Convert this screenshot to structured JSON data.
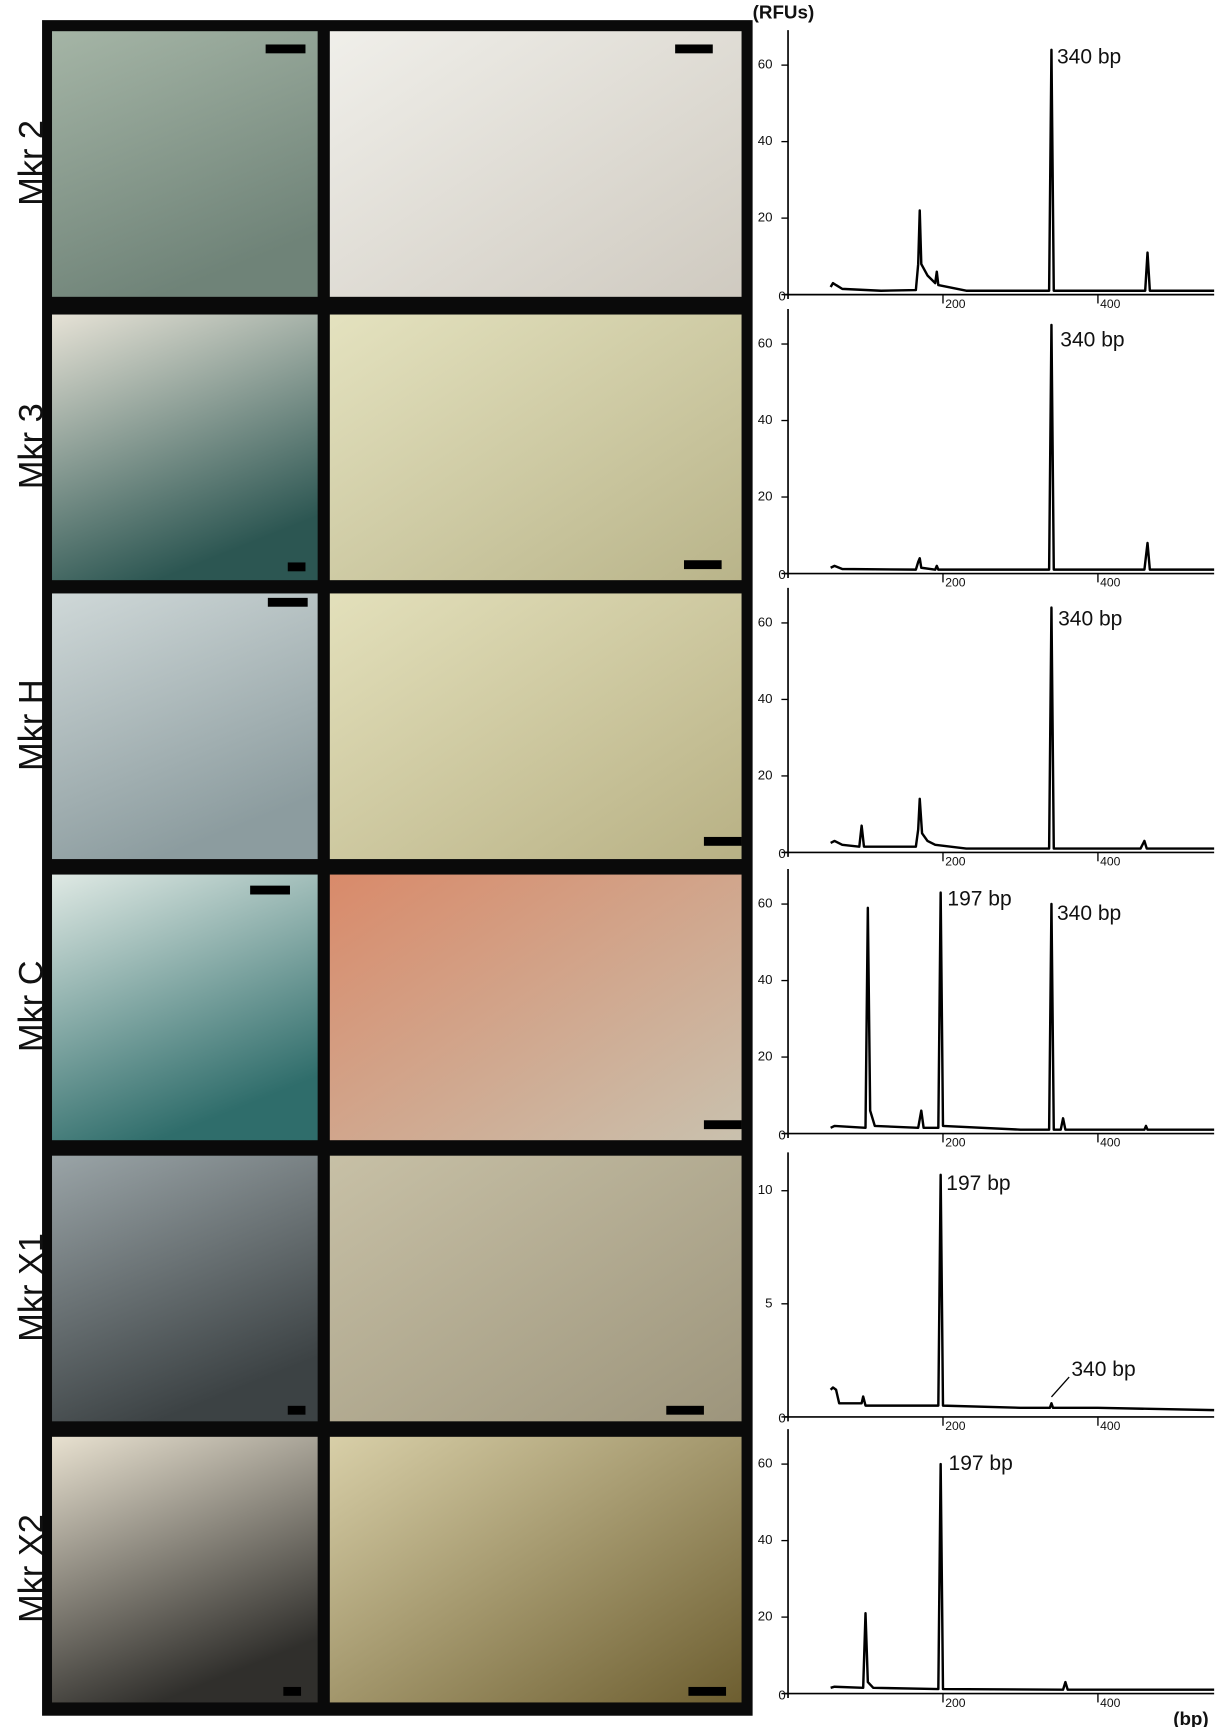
{
  "y_axis_label": "(RFUs)",
  "x_axis_label": "(bp)",
  "chart_data": [
    {
      "type": "line",
      "label": "Mkr 2",
      "color": "#000000",
      "xlim": [
        0,
        550
      ],
      "xticks": [
        200,
        400
      ],
      "ylim": [
        0,
        68
      ],
      "yticks": [
        0,
        20,
        40,
        60
      ],
      "x": [
        55,
        58,
        62,
        70,
        120,
        165,
        168,
        170,
        172,
        180,
        190,
        192,
        194,
        230,
        330,
        337,
        340,
        343,
        455,
        461,
        464,
        467,
        550
      ],
      "values": [
        2,
        3,
        2.5,
        1.5,
        1,
        1.2,
        8,
        22,
        8,
        5,
        3,
        6,
        2.5,
        1,
        1,
        1,
        64,
        1,
        1,
        1,
        11,
        1,
        1
      ],
      "annotations": [
        "340 bp"
      ]
    },
    {
      "type": "line",
      "label": "Mkr 3",
      "color": "#000000",
      "xlim": [
        0,
        550
      ],
      "xticks": [
        200,
        400
      ],
      "ylim": [
        0,
        68
      ],
      "yticks": [
        0,
        20,
        40,
        60
      ],
      "x": [
        55,
        60,
        70,
        165,
        168,
        170,
        172,
        190,
        192,
        194,
        300,
        337,
        340,
        343,
        460,
        464,
        467,
        550
      ],
      "values": [
        1.5,
        2,
        1.2,
        1,
        3,
        4,
        1.5,
        1,
        2,
        1,
        1,
        1,
        65,
        1,
        1,
        8,
        1,
        1
      ],
      "annotations": [
        "340 bp"
      ]
    },
    {
      "type": "line",
      "label": "Mkr H",
      "color": "#000000",
      "xlim": [
        0,
        550
      ],
      "xticks": [
        200,
        400
      ],
      "ylim": [
        0,
        68
      ],
      "yticks": [
        0,
        20,
        40,
        60
      ],
      "x": [
        55,
        60,
        70,
        92,
        95,
        98,
        165,
        168,
        170,
        173,
        180,
        190,
        230,
        337,
        340,
        343,
        455,
        460,
        463,
        550
      ],
      "values": [
        2.5,
        3,
        2,
        1.5,
        7,
        1.5,
        1.5,
        6,
        14,
        5,
        3,
        2,
        1,
        1,
        64,
        1,
        1,
        3,
        1,
        1
      ],
      "annotations": [
        "340 bp"
      ]
    },
    {
      "type": "line",
      "label": "Mkr C",
      "color": "#000000",
      "xlim": [
        0,
        550
      ],
      "xticks": [
        200,
        400
      ],
      "ylim": [
        0,
        68
      ],
      "yticks": [
        0,
        20,
        40,
        60
      ],
      "x": [
        55,
        60,
        100,
        103,
        106,
        112,
        168,
        172,
        175,
        194,
        197,
        200,
        300,
        337,
        340,
        343,
        352,
        355,
        358,
        460,
        462,
        464,
        550
      ],
      "values": [
        1.5,
        2,
        1.5,
        59,
        6,
        2,
        1.5,
        6,
        1.5,
        1.5,
        63,
        2,
        1,
        1,
        60,
        1,
        1,
        4,
        1,
        1,
        2,
        1,
        1
      ],
      "annotations": [
        "197 bp",
        "340 bp"
      ]
    },
    {
      "type": "line",
      "label": "Mkr X1",
      "color": "#000000",
      "xlim": [
        0,
        550
      ],
      "xticks": [
        200,
        400
      ],
      "ylim": [
        0,
        11.5
      ],
      "yticks": [
        0,
        5,
        10
      ],
      "x": [
        55,
        58,
        62,
        66,
        95,
        97,
        100,
        150,
        194,
        197,
        200,
        300,
        338,
        340,
        342,
        400,
        550
      ],
      "values": [
        1.2,
        1.3,
        1.2,
        0.6,
        0.6,
        0.9,
        0.5,
        0.5,
        0.5,
        10.7,
        0.5,
        0.4,
        0.4,
        0.6,
        0.4,
        0.4,
        0.3
      ],
      "annotations": [
        "197 bp",
        "340 bp"
      ]
    },
    {
      "type": "line",
      "label": "Mkr X2",
      "color": "#000000",
      "xlim": [
        0,
        550
      ],
      "xticks": [
        200,
        400
      ],
      "ylim": [
        0,
        68
      ],
      "yticks": [
        0,
        20,
        40,
        60
      ],
      "x": [
        55,
        60,
        97,
        100,
        103,
        110,
        194,
        197,
        200,
        355,
        358,
        361,
        550
      ],
      "values": [
        1.5,
        1.8,
        1.5,
        21,
        3,
        1.5,
        1.2,
        60,
        1.2,
        1,
        3,
        1,
        1
      ],
      "annotations": [
        "197 bp"
      ]
    }
  ]
}
